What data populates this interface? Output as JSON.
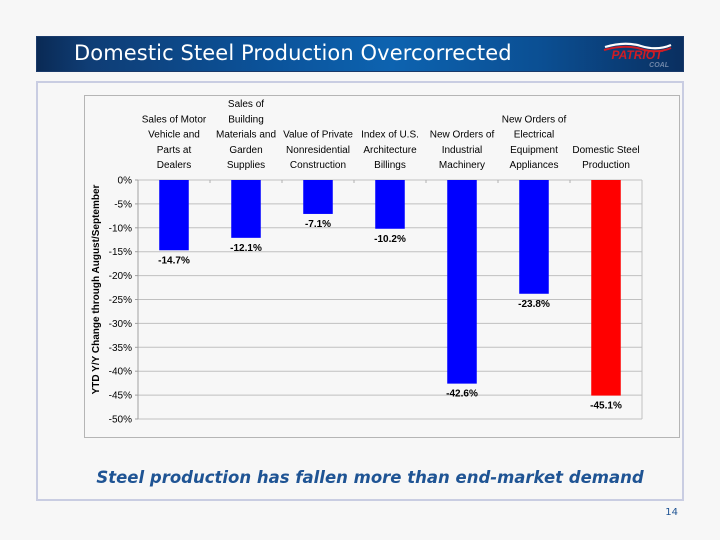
{
  "slide": {
    "title": "Domestic Steel Production Overcorrected",
    "logo": {
      "name": "Patriot Coal logo",
      "line1": "PATRIOT",
      "line2": "COAL"
    },
    "tagline": "Steel production has fallen more than end-market demand",
    "page_number": "14"
  },
  "colors": {
    "title_bar": "#0b5299",
    "bar_default": "#0000ff",
    "bar_highlight": "#ff0000",
    "tagline": "#1f5494",
    "gridline": "#c0c0c0"
  },
  "chart_data": {
    "type": "bar",
    "title": "",
    "xlabel": "",
    "ylabel": "YTD Y/Y Change through August/September",
    "ylim": [
      -50,
      0
    ],
    "ytick_step": 5,
    "ytick_labels": [
      "0%",
      "-5%",
      "-10%",
      "-15%",
      "-20%",
      "-25%",
      "-30%",
      "-35%",
      "-40%",
      "-45%",
      "-50%"
    ],
    "grid": true,
    "category_labels_position": "top",
    "categories": [
      "Sales of Motor Vehicle and Parts at Dealers",
      "Sales of Building Materials and Garden Supplies",
      "Value of Private Nonresidential Construction",
      "Index of U.S. Architecture Billings",
      "New Orders of Industrial Machinery",
      "New Orders of Electrical Equipment Appliances",
      "Domestic Steel Production"
    ],
    "category_label_lines": [
      [
        "Sales of Motor",
        "Vehicle and",
        "Parts at",
        "Dealers"
      ],
      [
        "Sales of",
        "Building",
        "Materials and",
        "Garden",
        "Supplies"
      ],
      [
        "Value of Private",
        "Nonresidential",
        "Construction"
      ],
      [
        "Index of U.S.",
        "Architecture",
        "Billings"
      ],
      [
        "New Orders of",
        "Industrial",
        "Machinery"
      ],
      [
        "New Orders of",
        "Electrical",
        "Equipment",
        "Appliances"
      ],
      [
        "Domestic Steel",
        "Production"
      ]
    ],
    "values": [
      -14.7,
      -12.1,
      -7.1,
      -10.2,
      -42.6,
      -23.8,
      -45.1
    ],
    "data_labels": [
      "-14.7%",
      "-12.1%",
      "-7.1%",
      "-10.2%",
      "-42.6%",
      "-23.8%",
      "-45.1%"
    ],
    "highlight_index": 6,
    "legend": "none"
  }
}
